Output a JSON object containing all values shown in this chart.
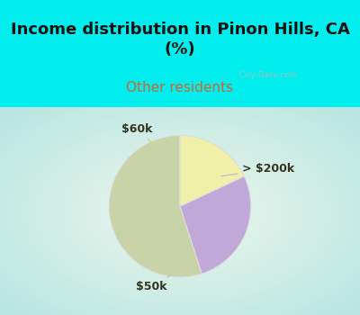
{
  "title": "Income distribution in Pinon Hills, CA\n(%)",
  "subtitle": "Other residents",
  "slices": [
    {
      "label": "$50k",
      "value": 55,
      "color": "#c8d4a8"
    },
    {
      "label": "> $200k",
      "value": 27,
      "color": "#c0a8d8"
    },
    {
      "label": "$60k",
      "value": 18,
      "color": "#f0f0a8"
    }
  ],
  "title_fontsize": 13,
  "subtitle_fontsize": 11,
  "title_color": "#111111",
  "subtitle_color": "#cc6633",
  "bg_top_color": "#00eeee",
  "watermark": "  City-Data.com",
  "startangle": 90,
  "annotation_line_color_60k": "#d4d488",
  "annotation_line_color_200k": "#c0b8d8",
  "annotation_line_color_50k": "#b8c8b0"
}
